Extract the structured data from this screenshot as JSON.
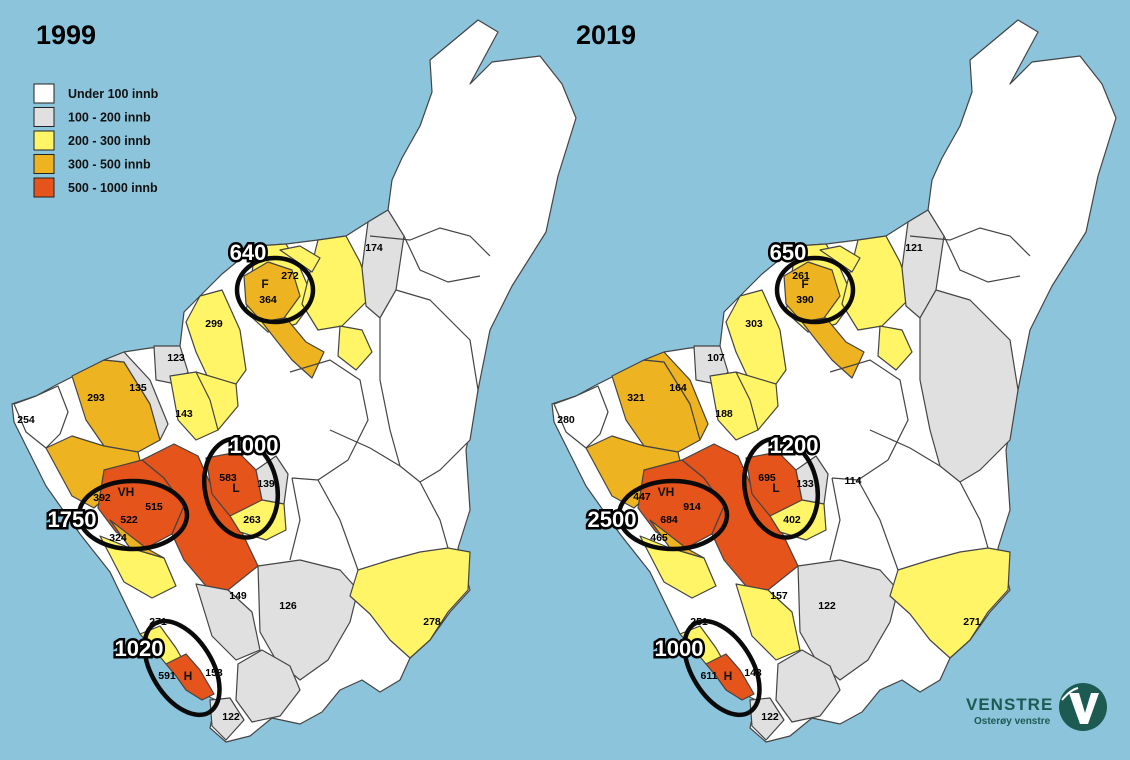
{
  "colors": {
    "sea": "#8cc4dc",
    "c0": "#ffffff",
    "c1": "#e0e0e0",
    "c2": "#fff566",
    "c3": "#edb321",
    "c4": "#e5541a",
    "logo": "#1c5a52"
  },
  "legend": [
    {
      "label": "Under 100 innb",
      "color": "c0"
    },
    {
      "label": "100 - 200 innb",
      "color": "c1"
    },
    {
      "label": "200 - 300 innb",
      "color": "c2"
    },
    {
      "label": "300 - 500 innb",
      "color": "c3"
    },
    {
      "label": "500 - 1000 innb",
      "color": "c4"
    }
  ],
  "maps": [
    {
      "year": "1999",
      "zones": {
        "nw": "c2",
        "ne": "c2",
        "sw": "c2",
        "se": "c2",
        "west1": "c2",
        "west2": "c3",
        "west3": "c1",
        "mid1": "c1",
        "mid2": "c2",
        "mid3": "c2",
        "north1": "c1",
        "f": "c3",
        "ftail": "c3",
        "vh": "c4",
        "vhw": "c3",
        "ccore": "c4",
        "l": "c4",
        "lse": "c2",
        "le": "c1",
        "south1": "c2",
        "south2": "c3",
        "s1": "c1",
        "s2": "c1",
        "s3": "c1",
        "h": "c4",
        "hn": "c2",
        "hs": "c1",
        "sec": "c2",
        "mide": "c0"
      },
      "labels": [
        "254",
        "293",
        "135",
        "123",
        "143",
        "299",
        "272",
        "364",
        "174",
        "392",
        "515",
        "522",
        "324",
        "583",
        "139",
        "263",
        "149",
        "126",
        "278",
        "271",
        "153",
        "591",
        "122"
      ],
      "letters": [
        "F",
        "VH",
        "L",
        "H"
      ],
      "totals": [
        "640",
        "1000",
        "1750",
        "1020"
      ]
    },
    {
      "year": "2019",
      "zones": {
        "nw": "c2",
        "ne": "c2",
        "sw": "c2",
        "se": "c2",
        "west1": "c2",
        "west2": "c3",
        "west3": "c3",
        "mid1": "c1",
        "mid2": "c2",
        "mid3": "c2",
        "north1": "c1",
        "f": "c3",
        "ftail": "c3",
        "vh": "c4",
        "vhw": "c3",
        "ccore": "c4",
        "l": "c4",
        "lse": "c2",
        "le": "c1",
        "south1": "c2",
        "south2": "c3",
        "s1": "c2",
        "s2": "c1",
        "s3": "c1",
        "h": "c4",
        "hn": "c2",
        "hs": "c1",
        "sec": "c2",
        "mide": "c1"
      },
      "labels": [
        "280",
        "321",
        "164",
        "107",
        "188",
        "303",
        "261",
        "390",
        "121",
        "447",
        "914",
        "684",
        "465",
        "695",
        "133",
        "402",
        "157",
        "122",
        "271",
        "251",
        "143",
        "611",
        "122",
        "114"
      ],
      "letters": [
        "F",
        "VH",
        "L",
        "H"
      ],
      "totals": [
        "650",
        "1200",
        "2500",
        "1000"
      ]
    }
  ],
  "logo": {
    "word": "VENSTRE",
    "sub": "Osterøy venstre",
    "icon": "venstre-v-logo"
  }
}
